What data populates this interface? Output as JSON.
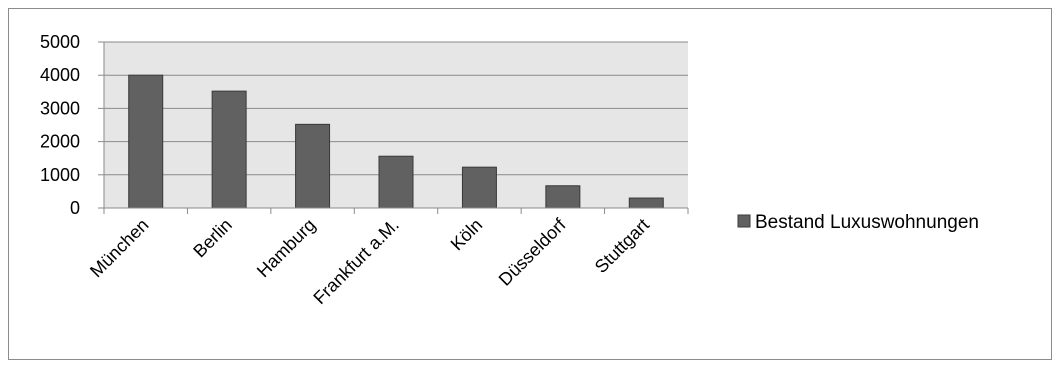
{
  "chart_data": {
    "type": "bar",
    "title": "",
    "xlabel": "",
    "ylabel": "",
    "categories": [
      "München",
      "Berlin",
      "Hamburg",
      "Frankfurt a.M.",
      "Köln",
      "Düsseldorf",
      "Stuttgart"
    ],
    "series": [
      {
        "name": "Bestand Luxuswohnungen",
        "values": [
          4000,
          3520,
          2520,
          1560,
          1230,
          670,
          300
        ],
        "color": "#616161"
      }
    ],
    "ylim": [
      0,
      5000
    ],
    "yticks": [
      "0",
      "1000",
      "2000",
      "3000",
      "4000",
      "5000"
    ],
    "grid": true,
    "legend_position": "right",
    "plot_background": "#e6e6e6"
  }
}
